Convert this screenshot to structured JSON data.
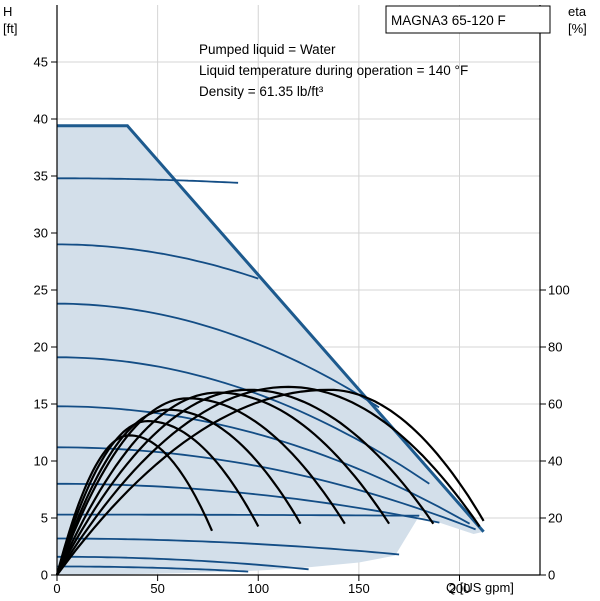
{
  "chart_data": {
    "type": "line",
    "model_label": "MAGNA3 65-120 F",
    "info_lines": [
      "Pumped liquid = Water",
      "Liquid temperature during operation = 140 °F",
      "Density = 61.35 lb/ft³"
    ],
    "y_left": {
      "label_top": "H",
      "label_unit": "[ft]",
      "range": [
        0,
        50
      ],
      "ticks": [
        0,
        5,
        10,
        15,
        20,
        25,
        30,
        35,
        40,
        45
      ]
    },
    "y_right": {
      "label_top": "eta",
      "label_unit": "[%]",
      "range": [
        0,
        200
      ],
      "ticks": [
        0,
        20,
        40,
        60,
        80,
        100
      ]
    },
    "x": {
      "label": "Q [US gpm]",
      "range": [
        0,
        240
      ],
      "ticks": [
        0,
        50,
        100,
        150,
        200
      ]
    },
    "grid": true,
    "colors": {
      "envelope_fill": "#d3dfea",
      "envelope_edge": "#1d5a8e",
      "head_curve": "#134d85",
      "eta_curve": "#000000",
      "grid": "#d4d4d4"
    },
    "operating_envelope": [
      [
        0,
        39.4
      ],
      [
        35,
        39.4
      ],
      [
        212,
        3.8
      ],
      [
        207,
        3.6
      ],
      [
        190,
        4.6
      ],
      [
        180,
        5.2
      ],
      [
        168,
        1.7
      ],
      [
        150,
        1.1
      ],
      [
        120,
        0.6
      ],
      [
        90,
        0.3
      ],
      [
        60,
        0.15
      ],
      [
        30,
        0.05
      ],
      [
        0,
        0
      ]
    ],
    "head_curves": [
      {
        "h0": 34.8,
        "q_end": 90,
        "h_end": 34.4
      },
      {
        "h0": 29.0,
        "q_end": 100,
        "h_end": 26.0
      },
      {
        "h0": 23.8,
        "q_end": 160,
        "h_end": 14.7
      },
      {
        "h0": 19.1,
        "q_end": 185,
        "h_end": 8.0
      },
      {
        "h0": 14.8,
        "q_end": 205,
        "h_end": 4.5
      },
      {
        "h0": 11.2,
        "q_end": 208,
        "h_end": 4.0
      },
      {
        "h0": 8.0,
        "q_end": 190,
        "h_end": 4.6
      },
      {
        "h0": 5.3,
        "q_end": 180,
        "h_end": 5.2
      },
      {
        "h0": 3.2,
        "q_end": 170,
        "h_end": 1.8
      },
      {
        "h0": 1.6,
        "q_end": 125,
        "h_end": 0.5
      },
      {
        "h0": 0.75,
        "q_end": 95,
        "h_end": 0.3
      }
    ],
    "eta_curves": [
      {
        "q_peak": 36,
        "eta_peak": 49,
        "q_end": 77,
        "eta_end": 15.5
      },
      {
        "q_peak": 45,
        "eta_peak": 54,
        "q_end": 100,
        "eta_end": 17
      },
      {
        "q_peak": 55,
        "eta_peak": 58,
        "q_end": 121,
        "eta_end": 18
      },
      {
        "q_peak": 65,
        "eta_peak": 62,
        "q_end": 143,
        "eta_end": 18
      },
      {
        "q_peak": 80,
        "eta_peak": 64,
        "q_end": 165,
        "eta_end": 18
      },
      {
        "q_peak": 95,
        "eta_peak": 65,
        "q_end": 187,
        "eta_end": 18
      },
      {
        "q_peak": 115,
        "eta_peak": 66,
        "q_end": 210,
        "eta_end": 17
      },
      {
        "q_peak": 135,
        "eta_peak": 65,
        "q_end": 212,
        "eta_end": 19
      }
    ]
  }
}
